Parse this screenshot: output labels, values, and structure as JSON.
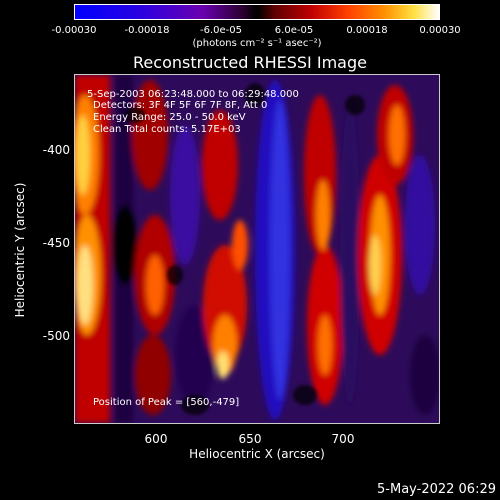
{
  "colorbar": {
    "ticks": [
      "-0.00030",
      "-0.00018",
      "-6.0e-05",
      "6.0e-05",
      "0.00018",
      "0.00030"
    ],
    "unit": "(photons cm⁻² s⁻¹ asec⁻²)"
  },
  "plot": {
    "title": "Reconstructed RHESSI Image",
    "overlay": [
      "5-Sep-2003 06:23:48.000 to 06:29:48.000",
      "Detectors: 3F 4F 5F 6F 7F 8F, Att 0",
      "Energy Range: 25.0 - 50.0 keV",
      "Clean     Total counts: 5.17E+03"
    ],
    "peak_label": "Position of Peak = [560,-479]",
    "xlabel": "Heliocentric X (arcsec)",
    "ylabel": "Heliocentric Y (arcsec)",
    "xticks": [
      "600",
      "650",
      "700"
    ],
    "yticks": [
      "-400",
      "-450",
      "-500"
    ]
  },
  "footer": {
    "date": "5-May-2022 06:29"
  }
}
